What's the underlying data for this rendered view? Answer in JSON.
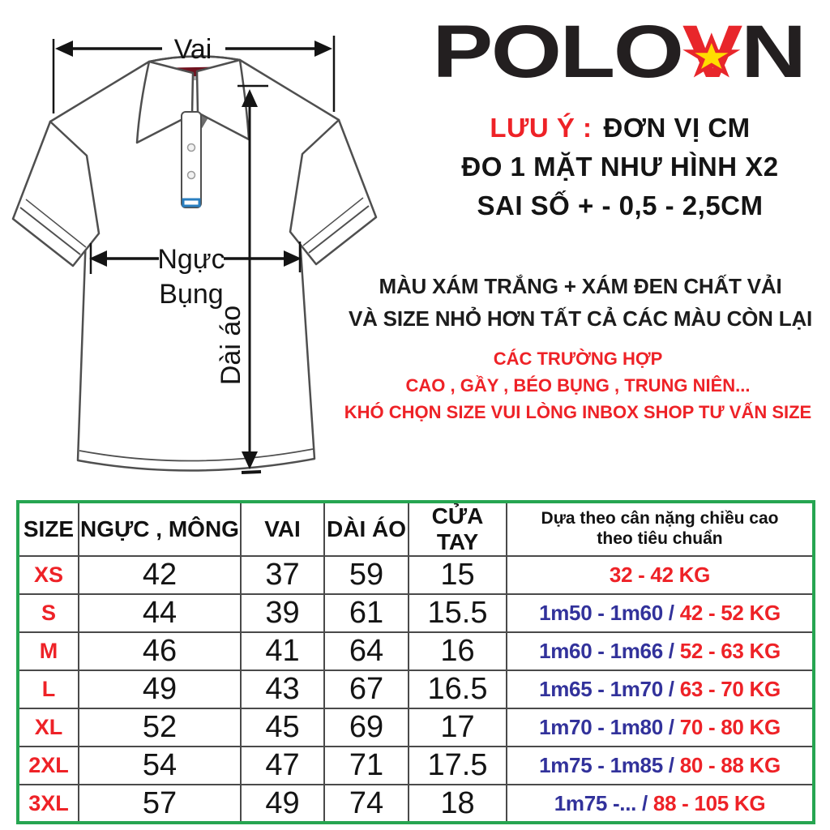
{
  "logo": {
    "part1": "POLO",
    "accent": "V",
    "part2": "N",
    "star": "★"
  },
  "diagram": {
    "labels": {
      "shoulder": "Vai",
      "chest": "Ngực",
      "belly": "Bụng",
      "length": "Dài áo"
    }
  },
  "notes": {
    "line1_red": "LƯU Ý :",
    "line1_black": "ĐƠN VỊ CM",
    "line2": "ĐO 1 MẶT NHƯ HÌNH X2",
    "line3": "SAI SỐ + - 0,5 - 2,5CM"
  },
  "info_black": [
    "MÀU XÁM TRẮNG + XÁM ĐEN CHẤT VẢI",
    "VÀ SIZE NHỎ HƠN TẤT CẢ CÁC MÀU CÒN LẠI"
  ],
  "info_red": [
    "CÁC TRƯỜNG HỢP",
    "CAO , GẦY , BÉO BỤNG , TRUNG NIÊN...",
    "KHÓ CHỌN SIZE VUI LÒNG INBOX SHOP TƯ VẤN SIZE"
  ],
  "table": {
    "headers": [
      "SIZE",
      "NGỰC , MÔNG",
      "VAI",
      "DÀI ÁO",
      "CỬA TAY",
      "Dựa theo cân nặng chiều cao theo tiêu chuẩn"
    ],
    "rows": [
      {
        "size": "XS",
        "chest": "42",
        "shoulder": "37",
        "length": "59",
        "cuff": "15",
        "height": "",
        "weight": "32 - 42 KG"
      },
      {
        "size": "S",
        "chest": "44",
        "shoulder": "39",
        "length": "61",
        "cuff": "15.5",
        "height": "1m50 - 1m60 /",
        "weight": "42 - 52 KG"
      },
      {
        "size": "M",
        "chest": "46",
        "shoulder": "41",
        "length": "64",
        "cuff": "16",
        "height": "1m60 - 1m66 /",
        "weight": "52 - 63 KG"
      },
      {
        "size": "L",
        "chest": "49",
        "shoulder": "43",
        "length": "67",
        "cuff": "16.5",
        "height": "1m65 - 1m70 /",
        "weight": "63 - 70 KG"
      },
      {
        "size": "XL",
        "chest": "52",
        "shoulder": "45",
        "length": "69",
        "cuff": "17",
        "height": "1m70 - 1m80 /",
        "weight": "70 - 80 KG"
      },
      {
        "size": "2XL",
        "chest": "54",
        "shoulder": "47",
        "length": "71",
        "cuff": "17.5",
        "height": "1m75 - 1m85 /",
        "weight": "80 - 88 KG"
      },
      {
        "size": "3XL",
        "chest": "57",
        "shoulder": "49",
        "length": "74",
        "cuff": "18",
        "height": "1m75 -... /",
        "weight": "88 - 105 KG"
      }
    ]
  },
  "colors": {
    "red": "#ee2227",
    "blue": "#32329b",
    "green_border": "#26a551",
    "logo_red": "#e8262b",
    "star_yellow": "#ffdd00"
  }
}
